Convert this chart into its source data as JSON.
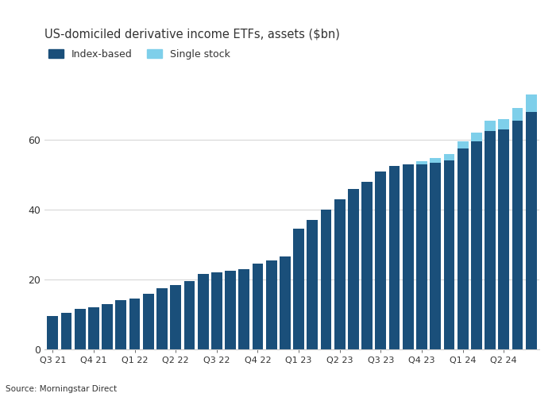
{
  "title": "US-domiciled derivative income ETFs, assets ($bn)",
  "legend_labels": [
    "Index-based",
    "Single stock"
  ],
  "index_color": "#1a4f7a",
  "single_color": "#7ecfea",
  "background_color": "#ffffff",
  "plot_bg_color": "#ffffff",
  "text_color": "#333333",
  "grid_color": "#cccccc",
  "source": "Source: Morningstar Direct",
  "x_tick_labels": [
    "Q3 21",
    "Q4 21",
    "Q1 22",
    "Q2 22",
    "Q3 22",
    "Q4 22",
    "Q1 23",
    "Q2 23",
    "Q3 23",
    "Q4 23",
    "Q1 24",
    "Q2 24"
  ],
  "x_tick_positions": [
    0,
    3,
    6,
    9,
    12,
    15,
    18,
    21,
    24,
    27,
    30,
    33
  ],
  "index_values": [
    9.5,
    10.5,
    11.5,
    12.0,
    13.0,
    14.0,
    14.5,
    16.0,
    17.5,
    18.5,
    19.5,
    21.5,
    22.0,
    22.5,
    23.0,
    24.5,
    25.5,
    26.5,
    34.5,
    37.0,
    40.0,
    43.0,
    46.0,
    48.0,
    51.0,
    52.5,
    53.0,
    53.0,
    53.5,
    54.0,
    57.5,
    59.5,
    62.5,
    63.0,
    65.5,
    68.0
  ],
  "single_values": [
    0.0,
    0.0,
    0.0,
    0.0,
    0.0,
    0.0,
    0.0,
    0.0,
    0.0,
    0.0,
    0.0,
    0.0,
    0.0,
    0.0,
    0.0,
    0.0,
    0.0,
    0.0,
    0.0,
    0.0,
    0.0,
    0.0,
    0.0,
    0.0,
    0.0,
    0.0,
    0.0,
    0.8,
    1.2,
    2.0,
    2.0,
    2.5,
    3.0,
    3.0,
    3.5,
    5.0
  ],
  "ylim": [
    0,
    75
  ],
  "yticks": [
    0,
    20,
    40,
    60
  ],
  "bar_width": 0.8
}
